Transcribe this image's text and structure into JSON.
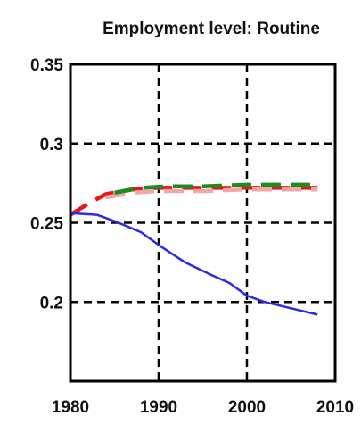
{
  "chart_data": {
    "type": "line",
    "title": "Employment level: Routine",
    "xlabel": "",
    "ylabel": "",
    "xlim": [
      1980,
      2010
    ],
    "ylim": [
      0.15,
      0.35
    ],
    "xticks": [
      "1980",
      "1990",
      "2000",
      "2010"
    ],
    "yticks": [
      "0.35",
      "0.3",
      "0.25",
      "0.2"
    ],
    "grid": true,
    "series": [
      {
        "color": "#e61919",
        "style": "dashed",
        "x": [
          1980,
          1982,
          1984,
          1987,
          1990,
          1995,
          2000,
          2005,
          2008
        ],
        "y": [
          0.255,
          0.262,
          0.268,
          0.271,
          0.272,
          0.272,
          0.272,
          0.272,
          0.272
        ]
      },
      {
        "color": "#f4a6a6",
        "style": "dashed",
        "x": [
          1984,
          1987,
          1990,
          1995,
          2000,
          2005,
          2008
        ],
        "y": [
          0.266,
          0.269,
          0.27,
          0.27,
          0.271,
          0.271,
          0.271
        ]
      },
      {
        "color": "#1f8a1f",
        "style": "dashed",
        "x": [
          1985,
          1988,
          1991,
          1995,
          2000,
          2005,
          2008
        ],
        "y": [
          0.269,
          0.272,
          0.273,
          0.273,
          0.274,
          0.274,
          0.274
        ]
      },
      {
        "color": "#2a2ae6",
        "style": "solid",
        "x": [
          1980,
          1983,
          1985,
          1988,
          1990,
          1993,
          1996,
          1998,
          2000,
          2002,
          2005,
          2008
        ],
        "y": [
          0.256,
          0.255,
          0.251,
          0.244,
          0.236,
          0.225,
          0.217,
          0.212,
          0.204,
          0.2,
          0.196,
          0.192
        ]
      }
    ]
  }
}
